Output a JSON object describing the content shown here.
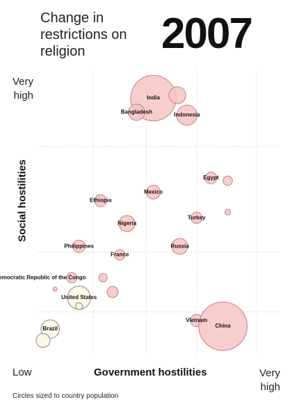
{
  "chart_data": {
    "type": "scatter",
    "title": "Change in restrictions on religion",
    "year": "2007",
    "ylabel": "Social hostilities",
    "xlabel": "Government hostilities",
    "y_high_label": "Very high",
    "x_low_label": "Low",
    "x_high_label": "Very high",
    "note": "Circles sized to country population",
    "xlim": [
      0,
      10
    ],
    "ylim": [
      0,
      10
    ],
    "xticks": [
      2.3,
      4.5,
      6.6,
      9.1
    ],
    "yticks": [
      1.5,
      3.6,
      7.3
    ],
    "grid": true,
    "labels": [
      "India",
      null,
      "Bangladesh",
      "Indonesia",
      "Egypt",
      null,
      "Mexico",
      "Ethiopia",
      "Turkey",
      null,
      "Nigeria",
      "Philippines",
      "Russia",
      "France",
      "Democratic Republic of the Congo",
      null,
      null,
      null,
      "United States",
      null,
      "Vietnam",
      "China",
      "Brazil",
      null
    ],
    "x": [
      4.8,
      5.8,
      4.1,
      6.2,
      7.2,
      7.9,
      4.8,
      2.6,
      6.6,
      7.9,
      3.7,
      1.7,
      5.9,
      3.4,
      1.4,
      2.7,
      3.1,
      0.7,
      1.7,
      1.7,
      6.6,
      7.7,
      0.5,
      0.2
    ],
    "y": [
      9.0,
      9.1,
      8.5,
      8.4,
      6.2,
      6.1,
      5.7,
      5.4,
      4.8,
      5.0,
      4.6,
      3.8,
      3.8,
      3.5,
      2.7,
      2.7,
      2.2,
      2.3,
      2.0,
      1.7,
      1.2,
      1.0,
      0.9,
      0.5
    ],
    "sizes": [
      1160,
      160,
      150,
      230,
      78,
      50,
      106,
      80,
      72,
      18,
      145,
      88,
      142,
      62,
      60,
      40,
      70,
      10,
      300,
      27,
      85,
      1320,
      190,
      110
    ],
    "colors": [
      "#f6c4c4",
      "#f6c4c4",
      "#f6c4c4",
      "#f6c4c4",
      "#f6c4c4",
      "#f6c4c4",
      "#f6c4c4",
      "#f6c4c4",
      "#f6c4c4",
      "#f6c4c4",
      "#f6c4c4",
      "#f6c4c4",
      "#f6c4c4",
      "#f6c4c4",
      "#f6c4c4",
      "#f6c4c4",
      "#f6c4c4",
      "#f6c4c4",
      "#fbf8e6",
      "#fbf8e6",
      "#f6c4c4",
      "#f6c4c4",
      "#fbf8e6",
      "#fbf8e6"
    ]
  }
}
